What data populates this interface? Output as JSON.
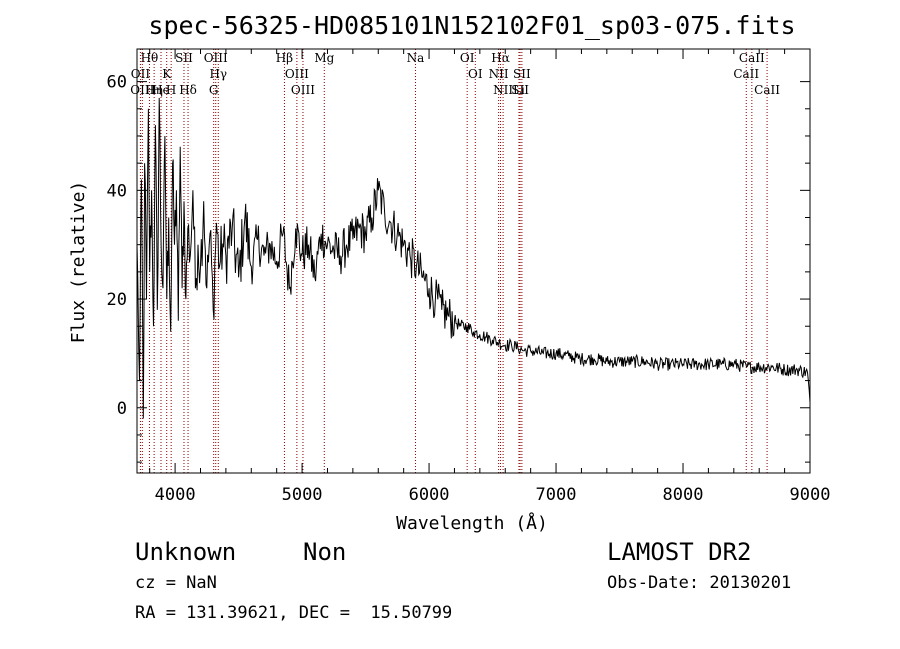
{
  "chart_data": {
    "type": "line",
    "title": "spec-56325-HD085101N152102F01_sp03-075.fits",
    "xlabel": "Wavelength (Å)",
    "ylabel": "Flux (relative)",
    "xlim": [
      3700,
      9000
    ],
    "ylim": [
      -12,
      66
    ],
    "x_ticks": [
      4000,
      5000,
      6000,
      7000,
      8000,
      9000
    ],
    "y_ticks": [
      0,
      20,
      40,
      60
    ],
    "grid": false,
    "line_color": "#000000",
    "marker_color": "#8b0000",
    "series": [
      {
        "x": [
          3700,
          3720,
          3735,
          3750,
          3760,
          3775,
          3790,
          3800,
          3815,
          3830,
          3845,
          3860,
          3875,
          3890,
          3905,
          3920,
          3935,
          3950,
          3965,
          3980,
          3995,
          4010,
          4025,
          4040,
          4055,
          4070,
          4085,
          4100,
          4120,
          4140,
          4160,
          4180,
          4200,
          4225,
          4250,
          4275,
          4300,
          4325,
          4350,
          4375,
          4400,
          4450,
          4500,
          4550,
          4600,
          4650,
          4700,
          4750,
          4800,
          4850,
          4900,
          4950,
          5000,
          5050,
          5100,
          5150,
          5200,
          5250,
          5300,
          5350,
          5400,
          5450,
          5500,
          5550,
          5600,
          5650,
          5700,
          5750,
          5800,
          5850,
          5900,
          5950,
          6000,
          6050,
          6100,
          6150,
          6200,
          6250,
          6300,
          6350,
          6400,
          6450,
          6500,
          6550,
          6600,
          6650,
          6700,
          6750,
          6800,
          6900,
          7000,
          7100,
          7200,
          7300,
          7400,
          7500,
          7600,
          7700,
          7800,
          7900,
          8000,
          8100,
          8200,
          8300,
          8400,
          8500,
          8600,
          8700,
          8800,
          8900,
          8980,
          9000
        ],
        "y": [
          30,
          5,
          42,
          -2,
          45,
          20,
          55,
          25,
          40,
          15,
          52,
          18,
          57,
          30,
          22,
          50,
          20,
          35,
          14,
          45,
          30,
          40,
          16,
          48,
          22,
          38,
          20,
          33,
          28,
          40,
          22,
          30,
          26,
          38,
          22,
          32,
          18,
          34,
          26,
          30,
          28,
          33,
          24,
          35,
          26,
          31,
          28,
          30,
          27,
          32,
          22,
          33,
          28,
          30,
          24,
          32,
          30,
          29,
          28,
          30,
          31,
          33,
          32,
          35,
          40,
          36,
          34,
          32,
          30,
          28,
          26,
          24,
          22,
          20,
          18,
          17,
          16,
          15,
          15,
          14,
          13.5,
          13,
          12.5,
          12,
          11.5,
          11.5,
          11,
          10.5,
          10.5,
          10,
          10,
          9.5,
          9,
          9,
          8.5,
          8.5,
          8.5,
          8.5,
          8,
          8,
          8,
          8,
          8,
          8,
          8,
          7.5,
          7.5,
          7.5,
          7,
          7,
          6.5,
          1
        ]
      }
    ],
    "line_markers": [
      {
        "label": "Hθ",
        "wavelength": 3798
      },
      {
        "label": "OII",
        "wavelength": 3727
      },
      {
        "label": "OIII",
        "wavelength": 3742
      },
      {
        "label": "Hη",
        "wavelength": 3835
      },
      {
        "label": "K",
        "wavelength": 3934
      },
      {
        "label": "He",
        "wavelength": 3889
      },
      {
        "label": "H",
        "wavelength": 3969
      },
      {
        "label": "SII",
        "wavelength": 4070
      },
      {
        "label": "Hδ",
        "wavelength": 4102
      },
      {
        "label": "OIII",
        "wavelength": 4320
      },
      {
        "label": "Hγ",
        "wavelength": 4340
      },
      {
        "label": "G",
        "wavelength": 4304
      },
      {
        "label": "Hβ",
        "wavelength": 4861
      },
      {
        "label": "OIII",
        "wavelength": 4959
      },
      {
        "label": "OIII",
        "wavelength": 5007
      },
      {
        "label": "Mg",
        "wavelength": 5175
      },
      {
        "label": "Na",
        "wavelength": 5893
      },
      {
        "label": "OI",
        "wavelength": 6300
      },
      {
        "label": "OI",
        "wavelength": 6364
      },
      {
        "label": "Hα",
        "wavelength": 6563
      },
      {
        "label": "NII",
        "wavelength": 6548
      },
      {
        "label": "NII",
        "wavelength": 6583
      },
      {
        "label": "SII",
        "wavelength": 6717
      },
      {
        "label": "Li",
        "wavelength": 6708
      },
      {
        "label": "SII",
        "wavelength": 6731
      },
      {
        "label": "CaII",
        "wavelength": 8542
      },
      {
        "label": "CaII",
        "wavelength": 8498
      },
      {
        "label": "CaII",
        "wavelength": 8662
      }
    ]
  },
  "info": {
    "class_label": "Unknown",
    "subclass_label": "Non",
    "redshift": "cz = NaN",
    "coords": "RA = 131.39621, DEC =  15.50799",
    "survey": "LAMOST DR2",
    "obs_date": "Obs-Date: 20130201"
  }
}
